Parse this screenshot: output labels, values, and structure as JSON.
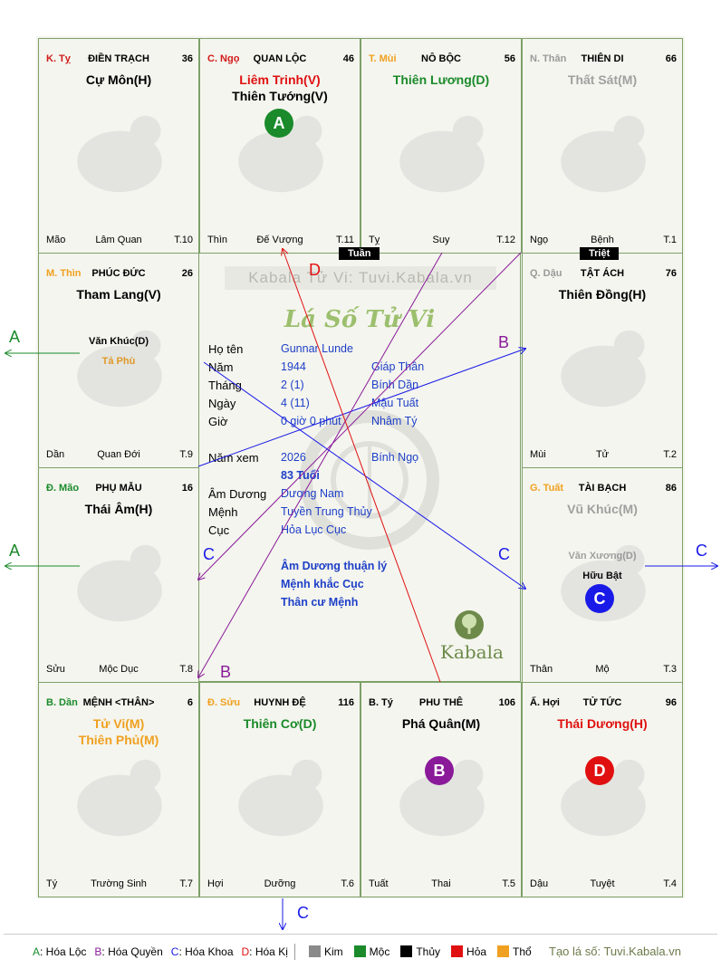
{
  "palaces": [
    {
      "can": "K. Tỵ",
      "can_color": "#d11a1a",
      "name": "ĐIỀN TRẠCH",
      "num": "36",
      "stars": [
        {
          "t": "Cự Môn(H)",
          "c": "#000000"
        }
      ],
      "minors": [],
      "bl": "Mão",
      "bc": "Lâm Quan",
      "br": "T.10"
    },
    {
      "can": "C. Ngọ",
      "can_color": "#d11a1a",
      "name": "QUAN LỘC",
      "num": "46",
      "stars": [
        {
          "t": "Liêm Trinh(V)",
          "c": "#e01010"
        },
        {
          "t": "Thiên Tướng(V)",
          "c": "#000000"
        }
      ],
      "minors": [],
      "bl": "Thìn",
      "bc": "Đế Vượng",
      "br": "T.11"
    },
    {
      "can": "T. Mùi",
      "can_color": "#f0a020",
      "name": "NÔ BỘC",
      "num": "56",
      "stars": [
        {
          "t": "Thiên Lương(D)",
          "c": "#1a8a2a"
        }
      ],
      "minors": [],
      "bl": "Tỵ",
      "bc": "Suy",
      "br": "T.12"
    },
    {
      "can": "N. Thân",
      "can_color": "#9a9a9a",
      "name": "THIÊN DI",
      "num": "66",
      "stars": [
        {
          "t": "Thất Sát(M)",
          "c": "#a0a0a0"
        }
      ],
      "minors": [],
      "bl": "Ngọ",
      "bc": "Bệnh",
      "br": "T.1"
    },
    {
      "can": "M. Thìn",
      "can_color": "#f0a020",
      "name": "PHÚC ĐỨC",
      "num": "26",
      "stars": [
        {
          "t": "Tham Lang(V)",
          "c": "#000000"
        }
      ],
      "minors": [
        {
          "t": "Văn Khúc(D)",
          "c": "#000000"
        },
        {
          "t": "Tả Phù",
          "c": "#f0a020"
        }
      ],
      "bl": "Dần",
      "bc": "Quan Đới",
      "br": "T.9"
    },
    {
      "can": "Q. Dậu",
      "can_color": "#9a9a9a",
      "name": "TẬT ÁCH",
      "num": "76",
      "stars": [
        {
          "t": "Thiên Đồng(H)",
          "c": "#000000"
        }
      ],
      "minors": [],
      "bl": "Mùi",
      "bc": "Tử",
      "br": "T.2"
    },
    {
      "can": "Đ. Mão",
      "can_color": "#1a8a2a",
      "name": "PHỤ MẪU",
      "num": "16",
      "stars": [
        {
          "t": "Thái Âm(H)",
          "c": "#000000"
        }
      ],
      "minors": [],
      "bl": "Sửu",
      "bc": "Mộc Dục",
      "br": "T.8"
    },
    {
      "can": "G. Tuất",
      "can_color": "#f0a020",
      "name": "TÀI BẠCH",
      "num": "86",
      "stars": [
        {
          "t": "Vũ Khúc(M)",
          "c": "#a0a0a0"
        }
      ],
      "minors": [
        {
          "t": "Văn Xương(D)",
          "c": "#a0a0a0"
        },
        {
          "t": "Hữu Bật",
          "c": "#000000"
        }
      ],
      "bl": "Thân",
      "bc": "Mộ",
      "br": "T.3"
    },
    {
      "can": "B. Dần",
      "can_color": "#1a8a2a",
      "name": "MỆNH <THÂN>",
      "num": "6",
      "stars": [
        {
          "t": "Tử Vi(M)",
          "c": "#f0a020"
        },
        {
          "t": "Thiên Phủ(M)",
          "c": "#f0a020"
        }
      ],
      "minors": [],
      "bl": "Tý",
      "bc": "Trường Sinh",
      "br": "T.7"
    },
    {
      "can": "Đ. Sửu",
      "can_color": "#f0a020",
      "name": "HUYNH ĐỆ",
      "num": "116",
      "stars": [
        {
          "t": "Thiên Cơ(D)",
          "c": "#1a8a2a"
        }
      ],
      "minors": [],
      "bl": "Hợi",
      "bc": "Dưỡng",
      "br": "T.6"
    },
    {
      "can": "B. Tý",
      "can_color": "#000000",
      "name": "PHU THÊ",
      "num": "106",
      "stars": [
        {
          "t": "Phá Quân(M)",
          "c": "#000000"
        }
      ],
      "minors": [],
      "bl": "Tuất",
      "bc": "Thai",
      "br": "T.5"
    },
    {
      "can": "Ấ. Hợi",
      "can_color": "#000000",
      "name": "TỬ TỨC",
      "num": "96",
      "stars": [
        {
          "t": "Thái Dương(H)",
          "c": "#e01010"
        }
      ],
      "minors": [],
      "bl": "Dậu",
      "bc": "Tuyệt",
      "br": "T.4"
    }
  ],
  "badges": [
    {
      "letter": "A",
      "color": "#1a8a2a",
      "palace": "QUAN LỘC"
    },
    {
      "letter": "C",
      "color": "#1a1ae8",
      "palace": "TÀI BẠCH"
    },
    {
      "letter": "B",
      "color": "#8a1a9a",
      "palace": "PHU THÊ"
    },
    {
      "letter": "D",
      "color": "#e01010",
      "palace": "TỬ TỨC"
    }
  ],
  "tags": {
    "tuan": "Tuần",
    "triet": "Triệt"
  },
  "center": {
    "watermark": "Kabala Tử Vi: Tuvi.Kabala.vn",
    "script_title": "Lá Số Tử Vi",
    "rows": [
      {
        "label": "Họ tên",
        "v1": "Gunnar Lunde",
        "v2": ""
      },
      {
        "label": "Năm",
        "v1": "1944",
        "v2": "Giáp Thân"
      },
      {
        "label": "Tháng",
        "v1": "2  (1)",
        "v2": "Bính Dần"
      },
      {
        "label": "Ngày",
        "v1": "4  (11)",
        "v2": "Mậu Tuất"
      },
      {
        "label": "Giờ",
        "v1": "0 giờ 0 phút",
        "v2": "Nhâm Tý"
      }
    ],
    "nam_xem_label": "Năm xem",
    "nam_xem": "2026",
    "nam_xem_can": "Bính Ngọ",
    "tuoi": "83 Tuổi",
    "rows2": [
      {
        "label": "Âm Dương",
        "v1": "Dương Nam"
      },
      {
        "label": "Mệnh",
        "v1": "Tuyền Trung Thủy"
      },
      {
        "label": "Cục",
        "v1": "Hỏa Lục Cục"
      }
    ],
    "notes": [
      "Âm Dương thuận lý",
      "Mệnh khắc Cục",
      "Thân cư Mệnh"
    ],
    "logo_text": "Kabala"
  },
  "arrow_labels": [
    "A",
    "A",
    "B",
    "B",
    "C",
    "C",
    "C",
    "C",
    "D"
  ],
  "legend": {
    "items": [
      {
        "k": "A",
        "t": ": Hóa Lộc",
        "c": "#1a8a2a"
      },
      {
        "k": "B",
        "t": ": Hóa Quyền",
        "c": "#8a1a9a"
      },
      {
        "k": "C",
        "t": ": Hóa Khoa",
        "c": "#1a1ae8"
      },
      {
        "k": "D",
        "t": ": Hóa Kị",
        "c": "#e01010"
      }
    ],
    "elements": [
      {
        "t": "Kim",
        "c": "#8a8a8a"
      },
      {
        "t": "Mộc",
        "c": "#1a8a2a"
      },
      {
        "t": "Thủy",
        "c": "#000000"
      },
      {
        "t": "Hỏa",
        "c": "#e01010"
      },
      {
        "t": "Thổ",
        "c": "#f0a020"
      }
    ],
    "site": "Tạo lá số: Tuvi.Kabala.vn"
  }
}
